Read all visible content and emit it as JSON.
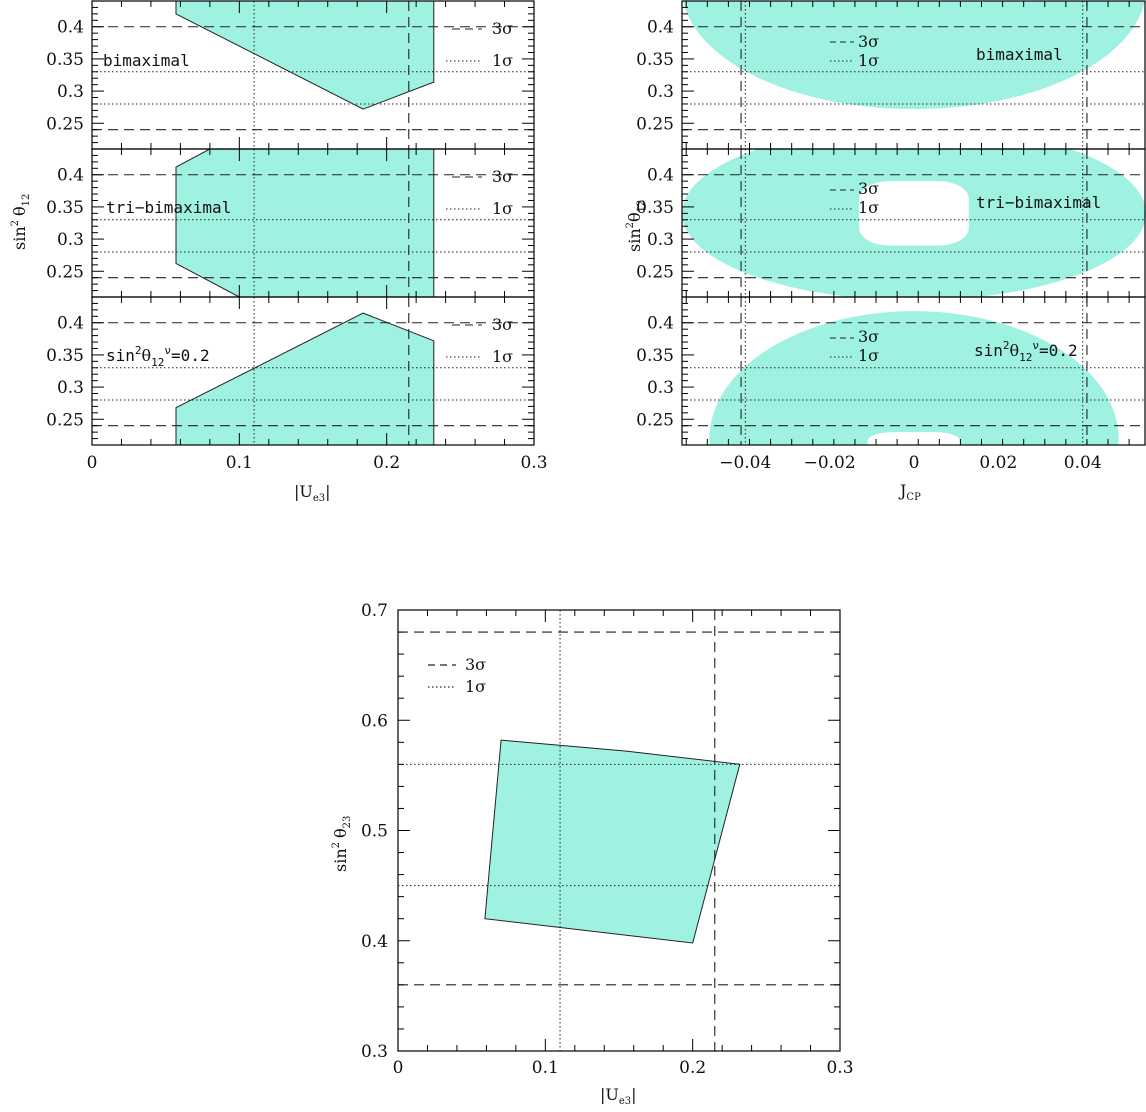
{
  "colors": {
    "fill": "#9ff2e2",
    "line": "#222222",
    "frame": "#000000"
  },
  "legend": {
    "three_sigma": "3σ",
    "one_sigma": "1σ"
  },
  "axes": {
    "ue3": "|U",
    "ue3_sub": "e3",
    "ue3_end": "|",
    "jcp": "J",
    "jcp_sub": "CP",
    "s12_left": "sin",
    "s12_left_sup": "2",
    "s12_theta": "θ",
    "s12_sub": "12",
    "s23_theta": "θ",
    "s23_sub": "23"
  },
  "labels": {
    "bimaximal": "bimaximal",
    "tri_bimaximal": "tri−bimaximal",
    "s12nu_pre": "sin",
    "s12nu_sup": "2",
    "s12nu_theta": "θ",
    "s12nu_sub": "12",
    "s12nu_nu": "ν",
    "s12nu_post": "=0.2"
  },
  "chart_data": [
    {
      "id": "left",
      "type": "area",
      "xlabel": "|Ue3|",
      "ylabel": "sin2 θ12",
      "xlim": [
        0,
        0.3
      ],
      "xticks": [
        "0",
        "0.1",
        "0.2",
        "0.3"
      ],
      "yticks": [
        "0.25",
        "0.3",
        "0.35",
        "0.4"
      ],
      "ylim": [
        0.21,
        0.44
      ],
      "reference_lines": {
        "three_sigma_x": 0.215,
        "one_sigma_x": 0.11,
        "three_sigma_y": [
          0.24,
          0.4
        ],
        "one_sigma_y": [
          0.28,
          0.33
        ]
      },
      "panels": [
        {
          "label": "bimaximal",
          "polygon": [
            [
              0.057,
              0.44
            ],
            [
              0.057,
              0.42
            ],
            [
              0.184,
              0.272
            ],
            [
              0.232,
              0.314
            ],
            [
              0.232,
              0.44
            ]
          ]
        },
        {
          "label": "tri−bimaximal",
          "polygon": [
            [
              0.057,
              0.262
            ],
            [
              0.057,
              0.412
            ],
            [
              0.08,
              0.44
            ],
            [
              0.232,
              0.44
            ],
            [
              0.232,
              0.21
            ],
            [
              0.1,
              0.21
            ]
          ]
        },
        {
          "label": "sin2θ12ν=0.2",
          "polygon": [
            [
              0.057,
              0.21
            ],
            [
              0.057,
              0.268
            ],
            [
              0.184,
              0.415
            ],
            [
              0.232,
              0.372
            ],
            [
              0.232,
              0.21
            ]
          ]
        }
      ]
    },
    {
      "id": "right",
      "type": "area",
      "xlabel": "JCP",
      "ylabel": "sin2θ12",
      "xlim": [
        -0.055,
        0.055
      ],
      "xticks": [
        "−0.04",
        "−0.02",
        "0",
        "0.02",
        "0.04"
      ],
      "yticks": [
        "0.25",
        "0.3",
        "0.35",
        "0.4"
      ],
      "ylim": [
        0.21,
        0.44
      ],
      "reference_lines": {
        "three_sigma_x": [
          -0.041,
          0.041
        ],
        "one_sigma_x": [
          -0.04,
          0.04
        ],
        "three_sigma_y": [
          0.24,
          0.4
        ],
        "one_sigma_y": [
          0.28,
          0.33
        ]
      },
      "panels": [
        {
          "label": "bimaximal",
          "ellipse": {
            "cx": 0,
            "cy": 0.46,
            "rx": 0.055,
            "ry": 0.188
          }
        },
        {
          "label": "tri−bimaximal",
          "ellipse": {
            "cx": 0,
            "cy": 0.34,
            "rx": 0.055,
            "ry": 0.135
          },
          "hole": {
            "cx": 0,
            "cy": 0.34,
            "rx": 0.013,
            "ry": 0.05
          }
        },
        {
          "label": "sin2θ12ν=0.2",
          "ellipse": {
            "cx": 0,
            "cy": 0.22,
            "rx": 0.0485,
            "ry": 0.198
          },
          "hole": {
            "cx": 0,
            "cy": 0.205,
            "rx": 0.011,
            "ry": 0.025
          }
        }
      ]
    },
    {
      "id": "bottom",
      "type": "area",
      "xlabel": "|Ue3|",
      "ylabel": "sin2 θ23",
      "xlim": [
        0,
        0.3
      ],
      "ylim": [
        0.3,
        0.7
      ],
      "xticks": [
        "0",
        "0.1",
        "0.2",
        "0.3"
      ],
      "yticks": [
        "0.3",
        "0.4",
        "0.5",
        "0.6",
        "0.7"
      ],
      "reference_lines": {
        "three_sigma_x": 0.215,
        "one_sigma_x": 0.11,
        "three_sigma_y": [
          0.36,
          0.68
        ],
        "one_sigma_y": [
          0.45,
          0.56
        ]
      },
      "polygon": [
        [
          0.07,
          0.582
        ],
        [
          0.155,
          0.572
        ],
        [
          0.232,
          0.56
        ],
        [
          0.2,
          0.398
        ],
        [
          0.059,
          0.42
        ]
      ]
    }
  ]
}
